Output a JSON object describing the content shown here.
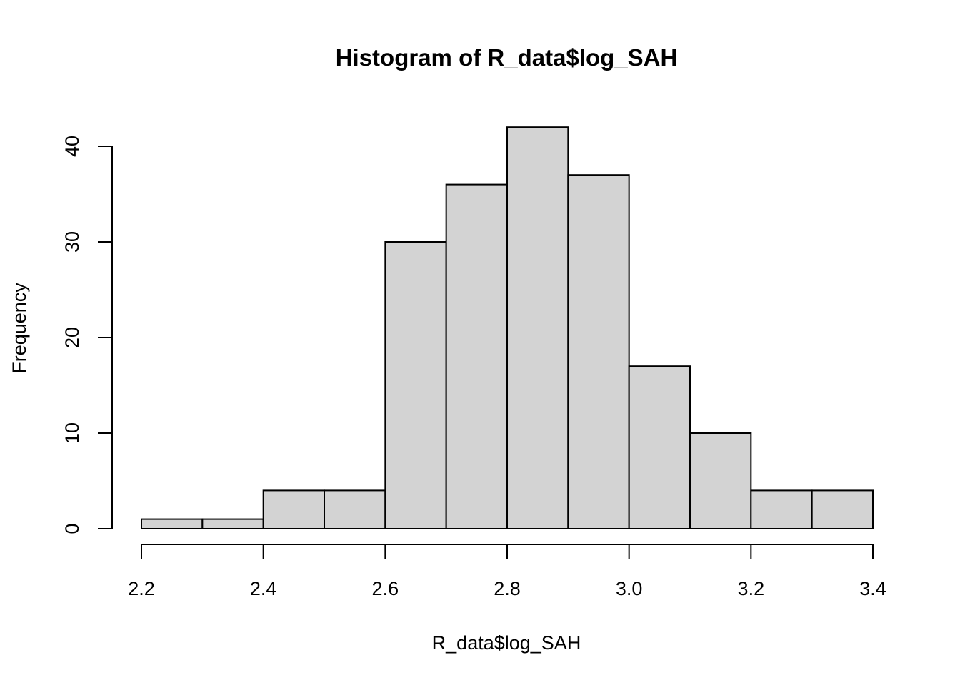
{
  "chart_data": {
    "type": "bar",
    "title": "Histogram of R_data$log_SAH",
    "xlabel": "R_data$log_SAH",
    "ylabel": "Frequency",
    "bin_edges": [
      2.2,
      2.3,
      2.4,
      2.5,
      2.6,
      2.7,
      2.8,
      2.9,
      3.0,
      3.1,
      3.2,
      3.3,
      3.4
    ],
    "values": [
      1,
      1,
      4,
      4,
      30,
      36,
      42,
      37,
      17,
      10,
      4,
      4
    ],
    "xlim": [
      2.2,
      3.4
    ],
    "ylim": [
      0,
      42
    ],
    "x_ticks": [
      "2.2",
      "2.4",
      "2.6",
      "2.8",
      "3.0",
      "3.2",
      "3.4"
    ],
    "y_ticks": [
      "0",
      "10",
      "20",
      "30",
      "40"
    ],
    "bar_fill": "#d3d3d3",
    "bar_stroke": "#000000",
    "grid": false,
    "legend": "none"
  }
}
